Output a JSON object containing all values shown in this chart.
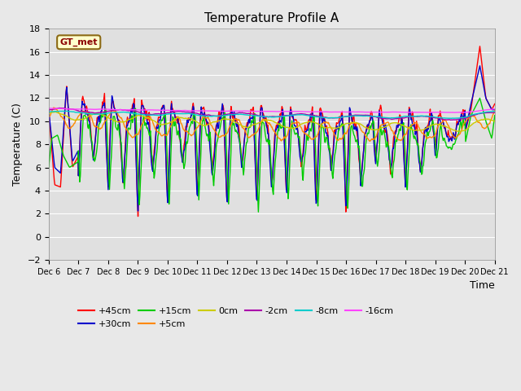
{
  "title": "Temperature Profile A",
  "xlabel": "Time",
  "ylabel": "Temperature (C)",
  "ylim": [
    -2,
    18
  ],
  "xlim": [
    0,
    15
  ],
  "x_tick_labels": [
    "Dec 6",
    "Dec 7",
    "Dec 8",
    "Dec 9",
    "Dec 10",
    "Dec 11",
    "Dec 12",
    "Dec 13",
    "Dec 14",
    "Dec 15",
    "Dec 16",
    "Dec 17",
    "Dec 18",
    "Dec 19",
    "Dec 20",
    "Dec 21"
  ],
  "fig_facecolor": "#e8e8e8",
  "axes_facecolor": "#e0e0e0",
  "grid_color": "#ffffff",
  "gt_met_label": "GT_met",
  "series": [
    {
      "label": "+45cm",
      "color": "#ff0000",
      "lw": 1.0
    },
    {
      "label": "+30cm",
      "color": "#0000cc",
      "lw": 1.0
    },
    {
      "label": "+15cm",
      "color": "#00cc00",
      "lw": 1.0
    },
    {
      "label": "+5cm",
      "color": "#ff8800",
      "lw": 1.0
    },
    {
      "label": "0cm",
      "color": "#cccc00",
      "lw": 1.0
    },
    {
      "label": "-2cm",
      "color": "#aa00aa",
      "lw": 1.0
    },
    {
      "label": "-8cm",
      "color": "#00cccc",
      "lw": 1.0
    },
    {
      "label": "-16cm",
      "color": "#ff44ff",
      "lw": 1.0
    }
  ]
}
